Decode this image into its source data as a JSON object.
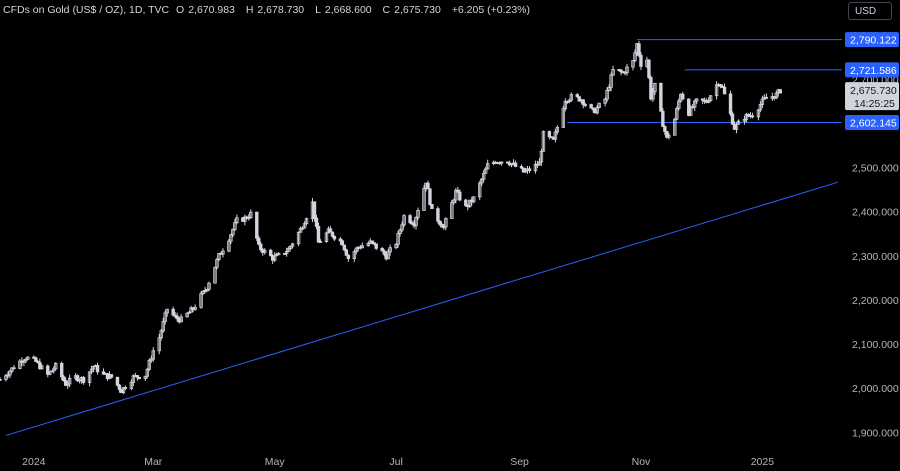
{
  "header": {
    "symbol": "CFDs on Gold (US$ / OZ), 1D, TVC",
    "open_label": "O",
    "open": "2,670.983",
    "high_label": "H",
    "high": "2,678.730",
    "low_label": "L",
    "low": "2,668.600",
    "close_label": "C",
    "close": "2,675.730",
    "change": "+6.205 (+0.23%)"
  },
  "currency_button": "USD",
  "colors": {
    "background": "#000000",
    "candle": "#d1d4dc",
    "level_line": "#2962ff",
    "price_badge": "#2962ff",
    "current_badge": "#d1d4dc"
  },
  "chart_data": {
    "type": "candlestick",
    "ylim": [
      1860,
      2830
    ],
    "y_ticks": [
      1900,
      2000,
      2100,
      2200,
      2300,
      2400,
      2500,
      2600,
      2700,
      2800
    ],
    "y_tick_labels": [
      "1,900.000",
      "2,000.000",
      "2,100.000",
      "2,200.000",
      "2,300.000",
      "2,400.000",
      "2,500.000",
      "2,600.000",
      "2,700.000",
      "2,800.000"
    ],
    "x_range": [
      "2023-12-15",
      "2025-02-10"
    ],
    "x_ticks": [
      "2024-01-01",
      "2024-03-01",
      "2024-05-01",
      "2024-07-01",
      "2024-09-01",
      "2024-11-01",
      "2025-01-01"
    ],
    "x_tick_labels": [
      "2024",
      "Mar",
      "May",
      "Jul",
      "Sep",
      "Nov",
      "2025"
    ],
    "price_levels": [
      {
        "value": 2790.122,
        "label": "2,790.122",
        "from": "2024-10-30"
      },
      {
        "value": 2721.586,
        "label": "2,721.586",
        "from": "2024-11-23"
      },
      {
        "value": 2602.145,
        "label": "2,602.145",
        "from": "2024-09-25"
      }
    ],
    "current_price": {
      "label": "2,675.730",
      "countdown": "14:25:25"
    },
    "trendline": [
      [
        "2023-12-18",
        1893
      ],
      [
        "2025-02-08",
        2467
      ]
    ],
    "closes": [
      [
        "2023-12-15",
        2020
      ],
      [
        "2023-12-20",
        2040
      ],
      [
        "2023-12-26",
        2065
      ],
      [
        "2023-12-28",
        2070
      ],
      [
        "2024-01-02",
        2060
      ],
      [
        "2024-01-08",
        2030
      ],
      [
        "2024-01-12",
        2050
      ],
      [
        "2024-01-17",
        2010
      ],
      [
        "2024-01-22",
        2025
      ],
      [
        "2024-01-26",
        2020
      ],
      [
        "2024-01-31",
        2050
      ],
      [
        "2024-02-05",
        2030
      ],
      [
        "2024-02-09",
        2025
      ],
      [
        "2024-02-14",
        1995
      ],
      [
        "2024-02-20",
        2025
      ],
      [
        "2024-02-26",
        2030
      ],
      [
        "2024-03-01",
        2085
      ],
      [
        "2024-03-04",
        2115
      ],
      [
        "2024-03-08",
        2180
      ],
      [
        "2024-03-12",
        2160
      ],
      [
        "2024-03-15",
        2155
      ],
      [
        "2024-03-21",
        2180
      ],
      [
        "2024-03-28",
        2230
      ],
      [
        "2024-04-03",
        2300
      ],
      [
        "2024-04-08",
        2340
      ],
      [
        "2024-04-12",
        2380
      ],
      [
        "2024-04-16",
        2385
      ],
      [
        "2024-04-19",
        2395
      ],
      [
        "2024-04-23",
        2320
      ],
      [
        "2024-04-30",
        2295
      ],
      [
        "2024-05-03",
        2300
      ],
      [
        "2024-05-08",
        2315
      ],
      [
        "2024-05-14",
        2360
      ],
      [
        "2024-05-20",
        2420
      ],
      [
        "2024-05-23",
        2330
      ],
      [
        "2024-05-28",
        2355
      ],
      [
        "2024-06-04",
        2330
      ],
      [
        "2024-06-07",
        2295
      ],
      [
        "2024-06-12",
        2320
      ],
      [
        "2024-06-18",
        2330
      ],
      [
        "2024-06-21",
        2320
      ],
      [
        "2024-06-26",
        2300
      ],
      [
        "2024-07-01",
        2330
      ],
      [
        "2024-07-05",
        2390
      ],
      [
        "2024-07-10",
        2375
      ],
      [
        "2024-07-16",
        2470
      ],
      [
        "2024-07-19",
        2400
      ],
      [
        "2024-07-25",
        2365
      ],
      [
        "2024-07-31",
        2445
      ],
      [
        "2024-08-05",
        2410
      ],
      [
        "2024-08-09",
        2430
      ],
      [
        "2024-08-16",
        2505
      ],
      [
        "2024-08-20",
        2515
      ],
      [
        "2024-08-26",
        2515
      ],
      [
        "2024-09-03",
        2490
      ],
      [
        "2024-09-06",
        2495
      ],
      [
        "2024-09-11",
        2510
      ],
      [
        "2024-09-13",
        2575
      ],
      [
        "2024-09-18",
        2560
      ],
      [
        "2024-09-24",
        2655
      ],
      [
        "2024-09-27",
        2660
      ],
      [
        "2024-10-02",
        2655
      ],
      [
        "2024-10-08",
        2625
      ],
      [
        "2024-10-14",
        2655
      ],
      [
        "2024-10-18",
        2720
      ],
      [
        "2024-10-23",
        2715
      ],
      [
        "2024-10-28",
        2740
      ],
      [
        "2024-10-30",
        2780
      ],
      [
        "2024-11-01",
        2735
      ],
      [
        "2024-11-04",
        2745
      ],
      [
        "2024-11-06",
        2660
      ],
      [
        "2024-11-08",
        2685
      ],
      [
        "2024-11-12",
        2600
      ],
      [
        "2024-11-14",
        2565
      ],
      [
        "2024-11-18",
        2610
      ],
      [
        "2024-11-21",
        2670
      ],
      [
        "2024-11-25",
        2625
      ],
      [
        "2024-11-29",
        2650
      ],
      [
        "2024-12-04",
        2650
      ],
      [
        "2024-12-10",
        2695
      ],
      [
        "2024-12-12",
        2680
      ],
      [
        "2024-12-18",
        2590
      ],
      [
        "2024-12-23",
        2615
      ],
      [
        "2024-12-27",
        2620
      ],
      [
        "2025-01-02",
        2655
      ],
      [
        "2025-01-08",
        2665
      ],
      [
        "2025-01-10",
        2675
      ]
    ]
  }
}
